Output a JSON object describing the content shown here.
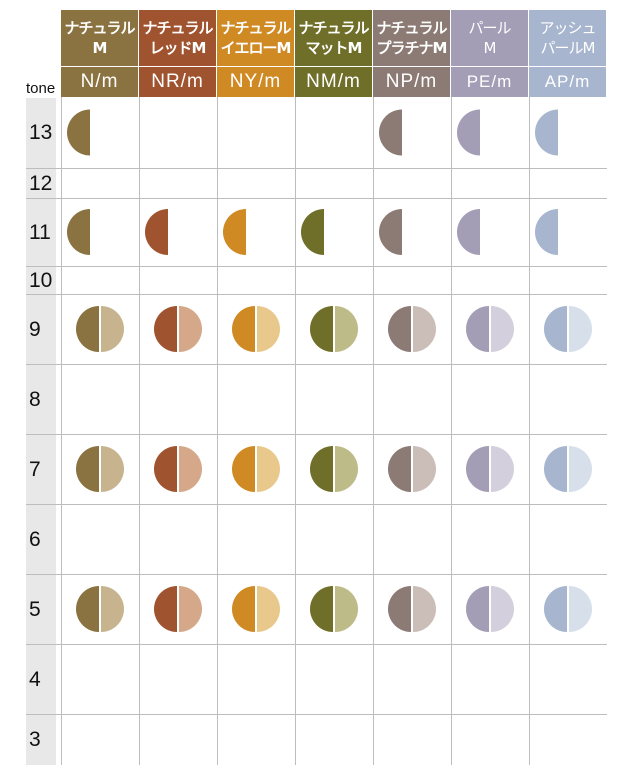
{
  "chart_data": {
    "type": "table",
    "tone_header": "tone",
    "tones": [
      "13",
      "12",
      "11",
      "10",
      "9",
      "8",
      "7",
      "6",
      "5",
      "4",
      "3"
    ],
    "columns": [
      {
        "name_lines": [
          "ナチュラル",
          "M"
        ],
        "code": "N/m",
        "header_color": "#8b7341",
        "dark": "#8b7341",
        "light": "#c7b48f",
        "light_header": false
      },
      {
        "name_lines": [
          "ナチュラル",
          "レッドM"
        ],
        "code": "NR/m",
        "header_color": "#a0532f",
        "dark": "#a0532f",
        "light": "#d5a88a",
        "light_header": false
      },
      {
        "name_lines": [
          "ナチュラル",
          "イエローM"
        ],
        "code": "NY/m",
        "header_color": "#cf8a24",
        "dark": "#cf8a24",
        "light": "#e9c88c",
        "light_header": false
      },
      {
        "name_lines": [
          "ナチュラル",
          "マットM"
        ],
        "code": "NM/m",
        "header_color": "#6f6f2a",
        "dark": "#6f6f2a",
        "light": "#bdbb88",
        "light_header": false
      },
      {
        "name_lines": [
          "ナチュラル",
          "プラチナM"
        ],
        "code": "NP/m",
        "header_color": "#8c7b74",
        "dark": "#8c7b74",
        "light": "#cbbdb8",
        "light_header": false
      },
      {
        "name_lines": [
          "パール",
          "M"
        ],
        "code": "PE/m",
        "header_color": "#a49db6",
        "dark": "#a49db6",
        "light": "#d3cfdc",
        "light_header": true
      },
      {
        "name_lines": [
          "アッシュ",
          "パールM"
        ],
        "code": "AP/m",
        "header_color": "#a7b5cf",
        "dark": "#a7b5cf",
        "light": "#d6dfea",
        "light_header": true
      }
    ],
    "swatches": [
      {
        "tone": "13",
        "kind": "half",
        "columns": [
          "N/m",
          "NP/m",
          "PE/m",
          "AP/m"
        ]
      },
      {
        "tone": "11",
        "kind": "half",
        "columns": [
          "N/m",
          "NR/m",
          "NY/m",
          "NM/m",
          "NP/m",
          "PE/m",
          "AP/m"
        ]
      },
      {
        "tone": "9",
        "kind": "full",
        "columns": [
          "N/m",
          "NR/m",
          "NY/m",
          "NM/m",
          "NP/m",
          "PE/m",
          "AP/m"
        ]
      },
      {
        "tone": "7",
        "kind": "full",
        "columns": [
          "N/m",
          "NR/m",
          "NY/m",
          "NM/m",
          "NP/m",
          "PE/m",
          "AP/m"
        ]
      },
      {
        "tone": "5",
        "kind": "full",
        "columns": [
          "N/m",
          "NR/m",
          "NY/m",
          "NM/m",
          "NP/m",
          "PE/m",
          "AP/m"
        ]
      }
    ]
  }
}
